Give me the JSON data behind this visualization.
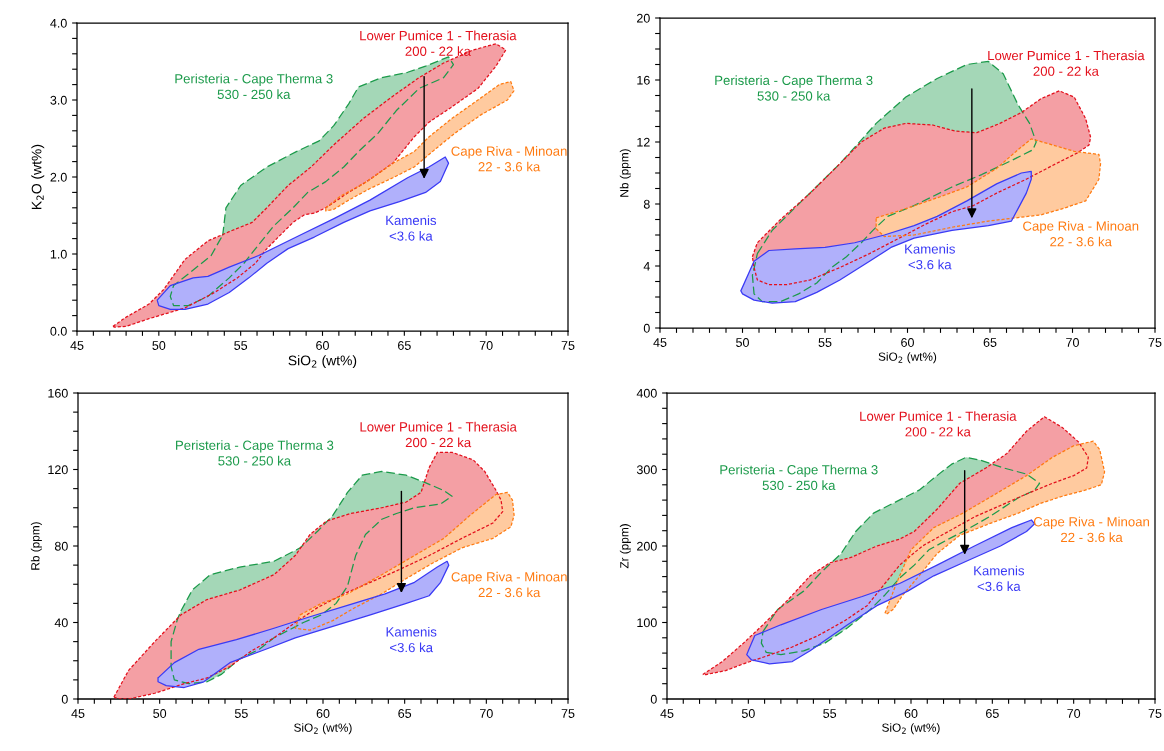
{
  "chart_data": [
    {
      "type": "area",
      "xlabel": "SiO$_{2}$ (wt%)",
      "ylabel": "K$_{2}$O (wt%)",
      "xlim": [
        45,
        75
      ],
      "ylim": [
        0,
        4
      ],
      "xticks": [
        45,
        {
          "value": 46,
          "label": null
        },
        {
          "value": 47,
          "label": null
        },
        {
          "value": 48,
          "label": null
        },
        {
          "value": 49,
          "label": null
        },
        50,
        {
          "value": 51,
          "label": null
        },
        {
          "value": 52,
          "label": null
        },
        {
          "value": 53,
          "label": null
        },
        {
          "value": 54,
          "label": null
        },
        55,
        {
          "value": 56,
          "label": null
        },
        {
          "value": 57,
          "label": null
        },
        {
          "value": 58,
          "label": null
        },
        {
          "value": 59,
          "label": null
        },
        60,
        {
          "value": 61,
          "label": null
        },
        {
          "value": 62,
          "label": null
        },
        {
          "value": 63,
          "label": null
        },
        {
          "value": 64,
          "label": null
        },
        65,
        {
          "value": 66,
          "label": null
        },
        {
          "value": 67,
          "label": null
        },
        {
          "value": 68,
          "label": null
        },
        {
          "value": 69,
          "label": null
        },
        70,
        {
          "value": 71,
          "label": null
        },
        {
          "value": 72,
          "label": null
        },
        {
          "value": 73,
          "label": null
        },
        {
          "value": 74,
          "label": null
        },
        75
      ],
      "yticks": [
        {
          "value": 0,
          "label": "0.0"
        },
        {
          "value": 0.2,
          "label": null
        },
        {
          "value": 0.4,
          "label": null
        },
        {
          "value": 0.6,
          "label": null
        },
        {
          "value": 0.8,
          "label": null
        },
        {
          "value": 1,
          "label": "1.0"
        },
        {
          "value": 1.2,
          "label": null
        },
        {
          "value": 1.4,
          "label": null
        },
        {
          "value": 1.6,
          "label": null
        },
        {
          "value": 1.8,
          "label": null
        },
        {
          "value": 2,
          "label": "2.0"
        },
        {
          "value": 2.2,
          "label": null
        },
        {
          "value": 2.4,
          "label": null
        },
        {
          "value": 2.6,
          "label": null
        },
        {
          "value": 2.8,
          "label": null
        },
        {
          "value": 3,
          "label": "3.0"
        },
        {
          "value": 3.2,
          "label": null
        },
        {
          "value": 3.4,
          "label": null
        },
        {
          "value": 3.6,
          "label": null
        },
        {
          "value": 3.8,
          "label": null
        },
        {
          "value": 4,
          "label": "4.0"
        }
      ],
      "series": [
        {
          "name": "Peristeria - Cape Therma 3\n530 - 250 ka",
          "color": "#1b9a4a",
          "line_style": "dashed",
          "x": [
            53.9,
            54.1,
            55.0,
            56.6,
            58.4,
            59.8,
            60.7,
            61.6,
            62.2,
            63.6,
            65.2,
            66.3,
            67.7,
            68.0,
            67.4,
            65.9,
            64.5,
            63.4,
            62.2,
            61.3,
            60.2,
            59.1,
            58.2,
            57.0,
            56.1,
            55.2,
            54.3,
            53.0,
            51.8,
            50.9,
            50.7,
            50.9,
            51.8,
            53.2,
            53.7
          ],
          "values": [
            1.24,
            1.6,
            1.89,
            2.13,
            2.33,
            2.47,
            2.67,
            2.95,
            3.17,
            3.29,
            3.36,
            3.44,
            3.56,
            3.46,
            3.29,
            3.15,
            2.86,
            2.57,
            2.33,
            2.13,
            1.94,
            1.8,
            1.6,
            1.36,
            1.12,
            0.88,
            0.69,
            0.45,
            0.33,
            0.33,
            0.45,
            0.59,
            0.74,
            0.98,
            1.17
          ]
        },
        {
          "name": "Lower Pumice 1 - Therasia\n200 - 22 ka",
          "color": "#e3101c",
          "line_style": "dotted",
          "x": [
            47.2,
            48.0,
            49.4,
            50.3,
            51.6,
            53.0,
            54.3,
            55.7,
            56.6,
            57.9,
            59.3,
            60.7,
            62.5,
            64.3,
            65.9,
            67.4,
            69.2,
            70.6,
            71.2,
            70.6,
            69.5,
            67.9,
            66.5,
            65.6,
            64.3,
            62.7,
            61.6,
            60.2,
            59.5,
            58.9,
            58.2,
            57.3,
            56.6,
            55.9,
            54.8,
            53.4,
            52.5,
            51.6,
            50.5,
            49.4,
            48.0,
            47.3
          ],
          "values": [
            0.06,
            0.18,
            0.35,
            0.54,
            0.93,
            1.17,
            1.29,
            1.41,
            1.6,
            1.89,
            2.13,
            2.42,
            2.76,
            3.05,
            3.29,
            3.48,
            3.65,
            3.73,
            3.65,
            3.44,
            3.15,
            2.91,
            2.71,
            2.52,
            2.18,
            1.94,
            1.8,
            1.6,
            1.53,
            1.51,
            1.41,
            1.22,
            1.07,
            0.88,
            0.69,
            0.5,
            0.4,
            0.3,
            0.23,
            0.16,
            0.06,
            0.05
          ]
        },
        {
          "name": "Cape Riva - Minoan\n22 - 3.6 ka",
          "color": "#ff7a10",
          "line_style": "dotted",
          "x": [
            60.2,
            61.1,
            62.7,
            64.3,
            65.6,
            66.5,
            67.9,
            69.5,
            70.8,
            71.5,
            71.7,
            71.3,
            69.7,
            68.1,
            67.0,
            65.6,
            64.3,
            62.9,
            61.6,
            60.7,
            60.2
          ],
          "values": [
            1.6,
            1.75,
            1.94,
            2.18,
            2.33,
            2.52,
            2.76,
            3.0,
            3.2,
            3.24,
            3.12,
            3.0,
            2.81,
            2.57,
            2.38,
            2.13,
            1.99,
            1.85,
            1.7,
            1.58,
            1.56
          ]
        },
        {
          "name": "Kamenis\n<3.6 ka",
          "color": "#3a3af5",
          "line_style": "solid",
          "x": [
            49.9,
            50.7,
            52.1,
            53.0,
            54.3,
            56.1,
            58.4,
            60.7,
            62.9,
            65.2,
            66.5,
            67.5,
            67.7,
            67.2,
            66.3,
            64.7,
            62.9,
            61.3,
            59.5,
            57.9,
            56.6,
            55.5,
            54.3,
            53.0,
            51.6,
            50.7,
            50.0
          ],
          "values": [
            0.4,
            0.59,
            0.69,
            0.71,
            0.83,
            0.98,
            1.22,
            1.46,
            1.7,
            1.99,
            2.13,
            2.26,
            2.18,
            1.94,
            1.8,
            1.68,
            1.56,
            1.41,
            1.22,
            1.07,
            0.88,
            0.69,
            0.5,
            0.35,
            0.28,
            0.28,
            0.33
          ]
        }
      ]
    },
    {
      "type": "area",
      "xlabel": "SiO$_{2}$ (wt%)",
      "ylabel": "Nb (ppm)",
      "xlim": [
        45,
        75
      ],
      "ylim": [
        0,
        20
      ],
      "xticks": [
        45,
        {
          "value": 46,
          "label": null
        },
        {
          "value": 47,
          "label": null
        },
        {
          "value": 48,
          "label": null
        },
        {
          "value": 49,
          "label": null
        },
        50,
        {
          "value": 51,
          "label": null
        },
        {
          "value": 52,
          "label": null
        },
        {
          "value": 53,
          "label": null
        },
        {
          "value": 54,
          "label": null
        },
        55,
        {
          "value": 56,
          "label": null
        },
        {
          "value": 57,
          "label": null
        },
        {
          "value": 58,
          "label": null
        },
        {
          "value": 59,
          "label": null
        },
        60,
        {
          "value": 61,
          "label": null
        },
        {
          "value": 62,
          "label": null
        },
        {
          "value": 63,
          "label": null
        },
        {
          "value": 64,
          "label": null
        },
        65,
        {
          "value": 66,
          "label": null
        },
        {
          "value": 67,
          "label": null
        },
        {
          "value": 68,
          "label": null
        },
        {
          "value": 69,
          "label": null
        },
        70,
        {
          "value": 71,
          "label": null
        },
        {
          "value": 72,
          "label": null
        },
        {
          "value": 73,
          "label": null
        },
        {
          "value": 74,
          "label": null
        },
        75
      ],
      "yticks": [
        0,
        {
          "value": 1,
          "label": null
        },
        {
          "value": 2,
          "label": null
        },
        {
          "value": 3,
          "label": null
        },
        4,
        {
          "value": 5,
          "label": null
        },
        {
          "value": 6,
          "label": null
        },
        {
          "value": 7,
          "label": null
        },
        8,
        {
          "value": 9,
          "label": null
        },
        {
          "value": 10,
          "label": null
        },
        {
          "value": 11,
          "label": null
        },
        12,
        {
          "value": 13,
          "label": null
        },
        {
          "value": 14,
          "label": null
        },
        {
          "value": 15,
          "label": null
        },
        16,
        {
          "value": 17,
          "label": null
        },
        {
          "value": 18,
          "label": null
        },
        {
          "value": 19,
          "label": null
        },
        20
      ],
      "series": [
        {
          "name": "Peristeria - Cape Therma 3\n530 - 250 ka",
          "color": "#1b9a4a",
          "line_style": "dashed",
          "x": [
            50.9,
            51.8,
            53.6,
            55.9,
            58.1,
            59.9,
            61.8,
            63.6,
            64.9,
            65.8,
            66.7,
            67.4,
            67.8,
            67.6,
            66.3,
            64.5,
            62.7,
            60.4,
            58.8,
            57.9,
            57.2,
            56.3,
            55.4,
            54.5,
            53.4,
            52.3,
            51.2,
            50.7,
            50.6,
            50.8
          ],
          "values": [
            4.8,
            6.3,
            8.2,
            10.6,
            13.2,
            14.9,
            16.1,
            17.0,
            17.2,
            16.4,
            14.4,
            13.2,
            12.0,
            11.5,
            10.8,
            9.9,
            9.1,
            7.9,
            7.2,
            6.3,
            5.5,
            4.6,
            3.9,
            2.9,
            2.2,
            1.7,
            1.7,
            2.2,
            3.4,
            4.3
          ]
        },
        {
          "name": "Lower Pumice 1 - Therasia\n200 - 22 ka",
          "color": "#e3101c",
          "line_style": "dotted",
          "x": [
            50.6,
            50.9,
            52.3,
            54.1,
            55.9,
            57.2,
            58.6,
            59.9,
            61.5,
            62.9,
            64.2,
            65.6,
            66.9,
            68.1,
            69.2,
            70.1,
            70.8,
            71.1,
            71.0,
            70.3,
            69.0,
            67.2,
            65.4,
            64.0,
            62.7,
            61.1,
            59.5,
            57.7,
            55.9,
            54.1,
            52.7,
            51.6,
            50.9,
            50.7
          ],
          "values": [
            4.6,
            5.5,
            7.0,
            8.7,
            10.6,
            12.0,
            12.9,
            13.2,
            13.1,
            12.7,
            12.6,
            13.2,
            13.9,
            14.8,
            15.3,
            14.9,
            13.5,
            12.3,
            11.8,
            11.3,
            10.6,
            9.6,
            8.7,
            7.9,
            7.5,
            6.7,
            5.8,
            4.8,
            3.9,
            3.1,
            2.8,
            2.8,
            3.1,
            3.9
          ]
        },
        {
          "name": "Cape Riva - Minoan\n22 - 3.6 ka",
          "color": "#ff7a10",
          "line_style": "dotted",
          "x": [
            58.1,
            59.9,
            61.8,
            63.6,
            65.4,
            66.7,
            67.5,
            68.5,
            70.1,
            71.6,
            71.7,
            71.6,
            70.8,
            69.4,
            68.1,
            66.5,
            64.9,
            62.7,
            60.4,
            58.6,
            58.1
          ],
          "values": [
            7.1,
            7.7,
            8.4,
            9.1,
            10.3,
            11.5,
            12.2,
            11.9,
            11.4,
            11.2,
            10.6,
            9.6,
            8.2,
            7.7,
            7.3,
            7.1,
            6.9,
            6.5,
            6.0,
            5.9,
            6.4
          ]
        },
        {
          "name": "Kamenis\n<3.6 ka",
          "color": "#3a3af5",
          "line_style": "solid",
          "x": [
            49.9,
            50.7,
            51.6,
            53.2,
            55.0,
            56.8,
            58.6,
            60.4,
            61.8,
            63.6,
            65.4,
            66.9,
            67.5,
            67.5,
            67.2,
            66.7,
            66.3,
            64.9,
            62.7,
            60.4,
            59.0,
            57.7,
            55.9,
            54.5,
            53.2,
            51.8,
            50.7,
            50.0
          ],
          "values": [
            2.4,
            4.3,
            5.0,
            5.1,
            5.2,
            5.5,
            6.0,
            6.6,
            7.2,
            8.2,
            9.3,
            10.0,
            10.1,
            9.6,
            8.7,
            7.7,
            6.9,
            6.6,
            6.3,
            5.8,
            5.2,
            4.3,
            3.1,
            2.3,
            1.7,
            1.6,
            1.8,
            2.2
          ]
        }
      ]
    },
    {
      "type": "area",
      "xlabel": "SiO$_{2}$ (wt%)",
      "ylabel": "Rb (ppm)",
      "xlim": [
        45,
        75
      ],
      "ylim": [
        0,
        160
      ],
      "xticks": [
        45,
        {
          "value": 46,
          "label": null
        },
        {
          "value": 47,
          "label": null
        },
        {
          "value": 48,
          "label": null
        },
        {
          "value": 49,
          "label": null
        },
        50,
        {
          "value": 51,
          "label": null
        },
        {
          "value": 52,
          "label": null
        },
        {
          "value": 53,
          "label": null
        },
        {
          "value": 54,
          "label": null
        },
        55,
        {
          "value": 56,
          "label": null
        },
        {
          "value": 57,
          "label": null
        },
        {
          "value": 58,
          "label": null
        },
        {
          "value": 59,
          "label": null
        },
        60,
        {
          "value": 61,
          "label": null
        },
        {
          "value": 62,
          "label": null
        },
        {
          "value": 63,
          "label": null
        },
        {
          "value": 64,
          "label": null
        },
        65,
        {
          "value": 66,
          "label": null
        },
        {
          "value": 67,
          "label": null
        },
        {
          "value": 68,
          "label": null
        },
        {
          "value": 69,
          "label": null
        },
        70,
        {
          "value": 71,
          "label": null
        },
        {
          "value": 72,
          "label": null
        },
        {
          "value": 73,
          "label": null
        },
        {
          "value": 74,
          "label": null
        },
        75
      ],
      "yticks": [
        0,
        {
          "value": 10,
          "label": null
        },
        {
          "value": 20,
          "label": null
        },
        {
          "value": 30,
          "label": null
        },
        40,
        {
          "value": 50,
          "label": null
        },
        {
          "value": 60,
          "label": null
        },
        {
          "value": 70,
          "label": null
        },
        80,
        {
          "value": 90,
          "label": null
        },
        {
          "value": 100,
          "label": null
        },
        {
          "value": 110,
          "label": null
        },
        120,
        {
          "value": 130,
          "label": null
        },
        {
          "value": 140,
          "label": null
        },
        {
          "value": 150,
          "label": null
        },
        160
      ],
      "series": [
        {
          "name": "Peristeria - Cape Therma 3\n530 - 250 ka",
          "color": "#1b9a4a",
          "line_style": "dashed",
          "x": [
            51.3,
            52.0,
            53.1,
            54.9,
            57.0,
            58.6,
            59.7,
            60.6,
            61.5,
            62.4,
            63.6,
            65.1,
            66.3,
            67.4,
            67.9,
            67.2,
            65.6,
            64.5,
            63.6,
            62.6,
            62.0,
            61.5,
            60.8,
            59.9,
            58.8,
            57.9,
            57.0,
            56.1,
            54.9,
            53.8,
            52.9,
            51.8,
            50.9,
            50.7,
            50.7,
            51.1
          ],
          "values": [
            46,
            57,
            65,
            69,
            72,
            79,
            88,
            96,
            108,
            117,
            119,
            117,
            113,
            109,
            106,
            102,
            100,
            97,
            94,
            86,
            75,
            59,
            50,
            44,
            40,
            36,
            32,
            26,
            21,
            13,
            9,
            8,
            10,
            17,
            30,
            42
          ]
        },
        {
          "name": "Lower Pumice 1 - Therasia\n200 - 22 ka",
          "color": "#e3101c",
          "line_style": "dotted",
          "x": [
            47.2,
            48.1,
            49.7,
            51.3,
            52.9,
            54.9,
            57.0,
            58.3,
            59.2,
            60.2,
            61.7,
            63.6,
            65.1,
            66.0,
            66.5,
            67.0,
            67.9,
            69.2,
            69.9,
            70.6,
            70.9,
            71.0,
            70.4,
            68.5,
            66.5,
            64.5,
            62.9,
            61.3,
            59.7,
            58.3,
            57.0,
            55.6,
            54.3,
            52.9,
            51.5,
            49.7,
            48.1,
            47.5
          ],
          "values": [
            1,
            15,
            30,
            44,
            52,
            57,
            65,
            75,
            86,
            93,
            97,
            100,
            103,
            108,
            121,
            129,
            129,
            125,
            119,
            109,
            104,
            98,
            92,
            84,
            75,
            67,
            61,
            55,
            48,
            40,
            32,
            25,
            17,
            11,
            8,
            3,
            0,
            0
          ]
        },
        {
          "name": "Cape Riva - Minoan\n22 - 3.6 ka",
          "color": "#ff7a10",
          "line_style": "dotted",
          "x": [
            58.6,
            59.9,
            61.5,
            63.6,
            65.6,
            67.4,
            69.0,
            70.6,
            71.3,
            71.6,
            71.7,
            71.5,
            70.4,
            68.5,
            66.7,
            65.1,
            63.6,
            62.0,
            60.6,
            59.2,
            58.3,
            58.5
          ],
          "values": [
            44,
            50,
            55,
            65,
            75,
            84,
            96,
            107,
            108,
            104,
            96,
            90,
            84,
            79,
            71,
            63,
            55,
            48,
            41,
            36,
            37,
            42
          ]
        },
        {
          "name": "Kamenis\n<3.6 ka",
          "color": "#3a3af5",
          "line_style": "solid",
          "x": [
            49.9,
            50.9,
            52.4,
            54.7,
            57.0,
            59.2,
            61.5,
            63.8,
            65.6,
            67.0,
            67.6,
            67.7,
            67.2,
            66.5,
            65.1,
            62.9,
            60.6,
            58.3,
            56.5,
            54.3,
            52.7,
            51.5,
            50.4,
            49.9
          ],
          "values": [
            11,
            19,
            26,
            31,
            37,
            43,
            49,
            55,
            61,
            69,
            72,
            70,
            61,
            54,
            50,
            44,
            38,
            32,
            26,
            19,
            9,
            6,
            7,
            9
          ]
        }
      ]
    },
    {
      "type": "area",
      "xlabel": "SiO$_{2}$ (wt%)",
      "ylabel": "Zr (ppm)",
      "xlim": [
        45,
        75
      ],
      "ylim": [
        0,
        400
      ],
      "xticks": [
        45,
        {
          "value": 46,
          "label": null
        },
        {
          "value": 47,
          "label": null
        },
        {
          "value": 48,
          "label": null
        },
        {
          "value": 49,
          "label": null
        },
        50,
        {
          "value": 51,
          "label": null
        },
        {
          "value": 52,
          "label": null
        },
        {
          "value": 53,
          "label": null
        },
        {
          "value": 54,
          "label": null
        },
        55,
        {
          "value": 56,
          "label": null
        },
        {
          "value": 57,
          "label": null
        },
        {
          "value": 58,
          "label": null
        },
        {
          "value": 59,
          "label": null
        },
        60,
        {
          "value": 61,
          "label": null
        },
        {
          "value": 62,
          "label": null
        },
        {
          "value": 63,
          "label": null
        },
        {
          "value": 64,
          "label": null
        },
        65,
        {
          "value": 66,
          "label": null
        },
        {
          "value": 67,
          "label": null
        },
        {
          "value": 68,
          "label": null
        },
        {
          "value": 69,
          "label": null
        },
        70,
        {
          "value": 71,
          "label": null
        },
        {
          "value": 72,
          "label": null
        },
        {
          "value": 73,
          "label": null
        },
        {
          "value": 74,
          "label": null
        },
        75
      ],
      "yticks": [
        0,
        {
          "value": 20,
          "label": null
        },
        {
          "value": 40,
          "label": null
        },
        {
          "value": 60,
          "label": null
        },
        {
          "value": 80,
          "label": null
        },
        100,
        {
          "value": 120,
          "label": null
        },
        {
          "value": 140,
          "label": null
        },
        {
          "value": 160,
          "label": null
        },
        {
          "value": 180,
          "label": null
        },
        200,
        {
          "value": 220,
          "label": null
        },
        {
          "value": 240,
          "label": null
        },
        {
          "value": 260,
          "label": null
        },
        {
          "value": 280,
          "label": null
        },
        300,
        {
          "value": 320,
          "label": null
        },
        {
          "value": 340,
          "label": null
        },
        {
          "value": 360,
          "label": null
        },
        {
          "value": 380,
          "label": null
        },
        400
      ],
      "series": [
        {
          "name": "Peristeria - Cape Therma 3\n530 - 250 ka",
          "color": "#1b9a4a",
          "line_style": "dashed",
          "x": [
            50.9,
            51.8,
            53.4,
            54.5,
            55.7,
            56.6,
            57.7,
            59.1,
            60.5,
            61.6,
            62.5,
            63.4,
            64.3,
            65.7,
            67.1,
            67.9,
            67.6,
            66.6,
            64.8,
            63.4,
            62.3,
            61.1,
            60.2,
            59.3,
            58.4,
            57.5,
            56.1,
            54.7,
            53.4,
            52.0,
            51.1,
            50.8
          ],
          "values": [
            88,
            117,
            141,
            166,
            190,
            219,
            243,
            258,
            273,
            292,
            307,
            316,
            312,
            302,
            294,
            282,
            273,
            263,
            238,
            221,
            209,
            195,
            175,
            158,
            136,
            117,
            93,
            73,
            63,
            58,
            61,
            73
          ]
        },
        {
          "name": "Lower Pumice 1 - Therasia\n200 - 22 ka",
          "color": "#e3101c",
          "line_style": "dotted",
          "x": [
            47.2,
            48.4,
            49.7,
            50.9,
            52.5,
            53.8,
            55.0,
            56.3,
            57.9,
            59.3,
            60.2,
            61.6,
            63.0,
            64.6,
            65.9,
            67.1,
            68.2,
            69.3,
            70.3,
            70.9,
            70.8,
            70.0,
            68.7,
            67.1,
            65.5,
            63.9,
            62.3,
            60.7,
            59.3,
            58.4,
            57.3,
            55.9,
            54.3,
            52.7,
            51.1,
            49.7,
            48.6,
            47.4
          ],
          "values": [
            32,
            49,
            73,
            97,
            131,
            161,
            178,
            185,
            200,
            209,
            219,
            248,
            282,
            302,
            321,
            350,
            369,
            355,
            336,
            316,
            302,
            292,
            282,
            268,
            253,
            238,
            219,
            200,
            175,
            151,
            122,
            102,
            83,
            68,
            56,
            46,
            37,
            32
          ]
        },
        {
          "name": "Cape Riva - Minoan\n22 - 3.6 ka",
          "color": "#ff7a10",
          "line_style": "dotted",
          "x": [
            58.4,
            59.1,
            60.0,
            61.4,
            63.2,
            65.2,
            67.1,
            68.7,
            70.0,
            71.2,
            71.6,
            71.9,
            71.7,
            70.7,
            69.3,
            68.0,
            66.6,
            64.8,
            63.0,
            61.6,
            60.5,
            59.5,
            58.9,
            58.5
          ],
          "values": [
            112,
            151,
            195,
            224,
            243,
            268,
            292,
            316,
            331,
            337,
            326,
            297,
            280,
            273,
            265,
            256,
            243,
            229,
            214,
            190,
            161,
            136,
            117,
            111
          ]
        },
        {
          "name": "Kamenis\n<3.6 ka",
          "color": "#3a3af5",
          "line_style": "solid",
          "x": [
            50.0,
            50.4,
            52.0,
            54.5,
            57.0,
            59.3,
            61.6,
            63.9,
            66.2,
            67.4,
            67.6,
            67.1,
            65.5,
            63.4,
            61.4,
            59.8,
            57.9,
            56.1,
            53.8,
            52.7,
            51.3,
            50.2,
            49.9
          ],
          "values": [
            63,
            83,
            97,
            117,
            134,
            151,
            175,
            200,
            224,
            234,
            229,
            219,
            200,
            180,
            161,
            141,
            122,
            97,
            63,
            49,
            46,
            51,
            58
          ]
        }
      ]
    }
  ]
}
